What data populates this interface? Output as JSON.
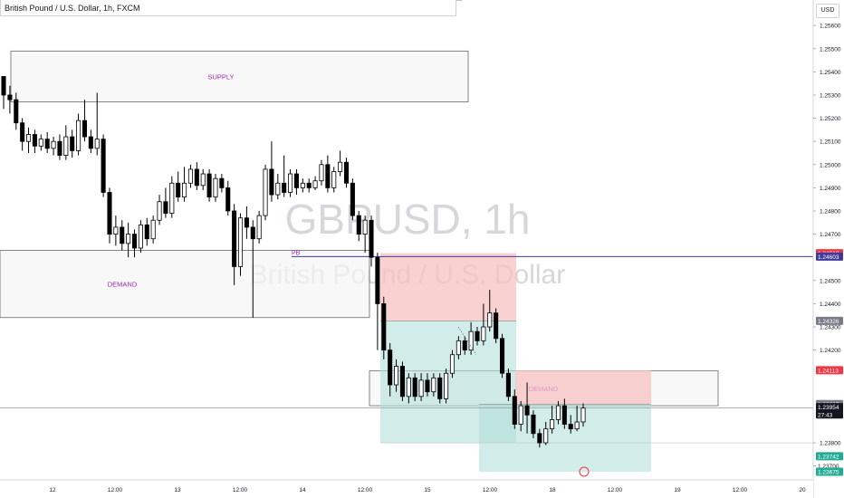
{
  "header": {
    "symbol_title": "British Pound / U.S. Dollar, 1h, FXCM",
    "currency_button": "USD"
  },
  "watermark": {
    "ticker": "GBPUSD, 1h",
    "name": "British Pound / U.S. Dollar"
  },
  "colors": {
    "candle_up": "#ffffff",
    "candle_down": "#000000",
    "zone_green": "#b2dfdb",
    "zone_red": "#f7c2c2",
    "zone_gray": "#f5f5f5",
    "label_purple": "#9c27b0",
    "hline_blue": "#3f3a99",
    "badge_red": "#f23645",
    "badge_teal": "#22ab94",
    "badge_dark": "#131722",
    "badge_gray": "#787b86"
  },
  "chart_data": {
    "type": "candlestick",
    "title": "British Pound / U.S. Dollar, 1h, FXCM",
    "ylim": [
      1.2364,
      1.2571
    ],
    "y_ticks": [
      "1.25600",
      "1.25500",
      "1.25400",
      "1.25300",
      "1.25200",
      "1.25100",
      "1.25000",
      "1.24900",
      "1.24800",
      "1.24700",
      "1.24500",
      "1.24400",
      "1.24300",
      "1.24200",
      "1.23800",
      "1.23700"
    ],
    "x_ticks": [
      "12",
      "12:00",
      "13",
      "12:00",
      "14",
      "12:00",
      "15",
      "12:00",
      "18",
      "12:00",
      "19",
      "12:00",
      "20"
    ],
    "zones": [
      {
        "label": "SUPPLY",
        "top": 1.2549,
        "bottom": 1.2527
      },
      {
        "label": "DEMAND",
        "top": 1.2463,
        "bottom": 1.2434
      },
      {
        "label": "DEMAND",
        "top": 1.2411,
        "bottom": 1.2396
      }
    ],
    "trades": [
      {
        "entry": 1.24326,
        "stop": 1.24618,
        "target": 1.238
      },
      {
        "entry": 1.23967,
        "stop": 1.24113,
        "target": 1.23675
      }
    ],
    "annotations": [
      {
        "text": "PB",
        "price": 1.24603
      }
    ],
    "price_badges": [
      {
        "text": "1.24618",
        "kind": "red"
      },
      {
        "text": "1.24603",
        "kind": "blue"
      },
      {
        "text": "1.24326",
        "kind": "gray"
      },
      {
        "text": "1.24113",
        "kind": "red"
      },
      {
        "text": "1.23967",
        "kind": "gray"
      },
      {
        "text": "1.23954",
        "kind": "dark"
      },
      {
        "text": "27:43",
        "kind": "dark"
      },
      {
        "text": "1.23742",
        "kind": "teal"
      },
      {
        "text": "1.23700",
        "kind": "plain"
      },
      {
        "text": "1.23675",
        "kind": "teal"
      }
    ],
    "candles": [
      [
        1.2538,
        1.253,
        1.2535,
        1.2524
      ],
      [
        1.253,
        1.2528,
        1.2534,
        1.2522
      ],
      [
        1.2528,
        1.2518,
        1.2531,
        1.2515
      ],
      [
        1.2518,
        1.251,
        1.252,
        1.2506
      ],
      [
        1.251,
        1.2513,
        1.2516,
        1.2505
      ],
      [
        1.2513,
        1.2508,
        1.2515,
        1.2505
      ],
      [
        1.2508,
        1.2511,
        1.2513,
        1.2506
      ],
      [
        1.2511,
        1.2507,
        1.2514,
        1.2505
      ],
      [
        1.2507,
        1.251,
        1.2512,
        1.2504
      ],
      [
        1.251,
        1.2504,
        1.2513,
        1.2502
      ],
      [
        1.2504,
        1.2512,
        1.2517,
        1.2502
      ],
      [
        1.2512,
        1.2506,
        1.2515,
        1.2503
      ],
      [
        1.2506,
        1.2519,
        1.2522,
        1.2504
      ],
      [
        1.2519,
        1.2512,
        1.2528,
        1.251
      ],
      [
        1.2512,
        1.2507,
        1.2515,
        1.2505
      ],
      [
        1.2507,
        1.2511,
        1.2531,
        1.2504
      ],
      [
        1.2511,
        1.2488,
        1.2513,
        1.2486
      ],
      [
        1.2488,
        1.247,
        1.249,
        1.2466
      ],
      [
        1.247,
        1.2473,
        1.2478,
        1.2465
      ],
      [
        1.2473,
        1.2466,
        1.2476,
        1.2463
      ],
      [
        1.2466,
        1.247,
        1.2475,
        1.246
      ],
      [
        1.247,
        1.2464,
        1.2472,
        1.246
      ],
      [
        1.2464,
        1.2474,
        1.2476,
        1.2462
      ],
      [
        1.2474,
        1.2468,
        1.2477,
        1.2465
      ],
      [
        1.2468,
        1.2476,
        1.2478,
        1.2466
      ],
      [
        1.2476,
        1.2484,
        1.2487,
        1.2474
      ],
      [
        1.2484,
        1.2479,
        1.249,
        1.2477
      ],
      [
        1.2479,
        1.2492,
        1.2495,
        1.2477
      ],
      [
        1.2492,
        1.2486,
        1.2497,
        1.2484
      ],
      [
        1.2486,
        1.2492,
        1.2499,
        1.2484
      ],
      [
        1.2492,
        1.2498,
        1.25,
        1.249
      ],
      [
        1.2498,
        1.2491,
        1.2501,
        1.2489
      ],
      [
        1.2491,
        1.2496,
        1.2498,
        1.2489
      ],
      [
        1.2496,
        1.2486,
        1.2498,
        1.2484
      ],
      [
        1.2486,
        1.2494,
        1.2496,
        1.2484
      ],
      [
        1.2494,
        1.249,
        1.2496,
        1.2488
      ],
      [
        1.249,
        1.248,
        1.2493,
        1.2478
      ],
      [
        1.248,
        1.2456,
        1.2483,
        1.2448
      ],
      [
        1.2456,
        1.2477,
        1.2479,
        1.2452
      ],
      [
        1.2477,
        1.2473,
        1.2482,
        1.2468
      ],
      [
        1.2473,
        1.2468,
        1.2476,
        1.2434
      ],
      [
        1.2468,
        1.2478,
        1.248,
        1.2466
      ],
      [
        1.2478,
        1.2498,
        1.25,
        1.2476
      ],
      [
        1.2498,
        1.2487,
        1.251,
        1.2484
      ],
      [
        1.2487,
        1.2492,
        1.2496,
        1.2485
      ],
      [
        1.2492,
        1.2488,
        1.2504,
        1.2486
      ],
      [
        1.2488,
        1.2496,
        1.2498,
        1.2486
      ],
      [
        1.2496,
        1.249,
        1.2498,
        1.2487
      ],
      [
        1.249,
        1.2492,
        1.2494,
        1.2488
      ],
      [
        1.2492,
        1.249,
        1.2494,
        1.2488
      ],
      [
        1.249,
        1.2493,
        1.2495,
        1.2489
      ],
      [
        1.2493,
        1.25,
        1.2502,
        1.2491
      ],
      [
        1.25,
        1.249,
        1.2504,
        1.2488
      ],
      [
        1.249,
        1.2497,
        1.2499,
        1.2488
      ],
      [
        1.2497,
        1.2501,
        1.2506,
        1.2495
      ],
      [
        1.2501,
        1.2492,
        1.2503,
        1.249
      ],
      [
        1.2492,
        1.2478,
        1.2494,
        1.2476
      ],
      [
        1.2478,
        1.247,
        1.248,
        1.2467
      ],
      [
        1.247,
        1.2476,
        1.2478,
        1.2462
      ],
      [
        1.2476,
        1.246,
        1.2478,
        1.2456
      ],
      [
        1.246,
        1.244,
        1.2462,
        1.242
      ],
      [
        1.244,
        1.242,
        1.2443,
        1.2416
      ],
      [
        1.242,
        1.2405,
        1.2423,
        1.24
      ],
      [
        1.2405,
        1.2413,
        1.2416,
        1.2402
      ],
      [
        1.2413,
        1.24,
        1.2415,
        1.2398
      ],
      [
        1.24,
        1.2408,
        1.241,
        1.2397
      ],
      [
        1.2408,
        1.24,
        1.241,
        1.2398
      ],
      [
        1.24,
        1.2407,
        1.241,
        1.2398
      ],
      [
        1.2407,
        1.2402,
        1.241,
        1.24
      ],
      [
        1.2402,
        1.2408,
        1.241,
        1.24
      ],
      [
        1.2408,
        1.2399,
        1.241,
        1.2397
      ],
      [
        1.2399,
        1.241,
        1.2412,
        1.2397
      ],
      [
        1.241,
        1.2418,
        1.242,
        1.2408
      ],
      [
        1.2418,
        1.2424,
        1.2426,
        1.2416
      ],
      [
        1.2424,
        1.242,
        1.2426,
        1.2418
      ],
      [
        1.242,
        1.2428,
        1.2432,
        1.2418
      ],
      [
        1.2428,
        1.2424,
        1.243,
        1.2422
      ],
      [
        1.2424,
        1.243,
        1.244,
        1.2422
      ],
      [
        1.243,
        1.2436,
        1.2446,
        1.2428
      ],
      [
        1.2436,
        1.2425,
        1.2438,
        1.2423
      ],
      [
        1.2425,
        1.241,
        1.2427,
        1.2408
      ],
      [
        1.241,
        1.24,
        1.2412,
        1.2398
      ],
      [
        1.24,
        1.2388,
        1.2403,
        1.2386
      ],
      [
        1.2388,
        1.2396,
        1.2398,
        1.2385
      ],
      [
        1.2396,
        1.2392,
        1.2406,
        1.2384
      ],
      [
        1.2392,
        1.2384,
        1.2394,
        1.2382
      ],
      [
        1.2384,
        1.238,
        1.2386,
        1.2378
      ],
      [
        1.238,
        1.2386,
        1.2389,
        1.2379
      ],
      [
        1.2386,
        1.239,
        1.2396,
        1.2384
      ],
      [
        1.239,
        1.2396,
        1.2398,
        1.2388
      ],
      [
        1.2396,
        1.2388,
        1.2399,
        1.2386
      ],
      [
        1.2388,
        1.2386,
        1.2392,
        1.2384
      ],
      [
        1.2386,
        1.2389,
        1.2396,
        1.2385
      ],
      [
        1.2389,
        1.2395,
        1.2397,
        1.2387
      ]
    ]
  }
}
